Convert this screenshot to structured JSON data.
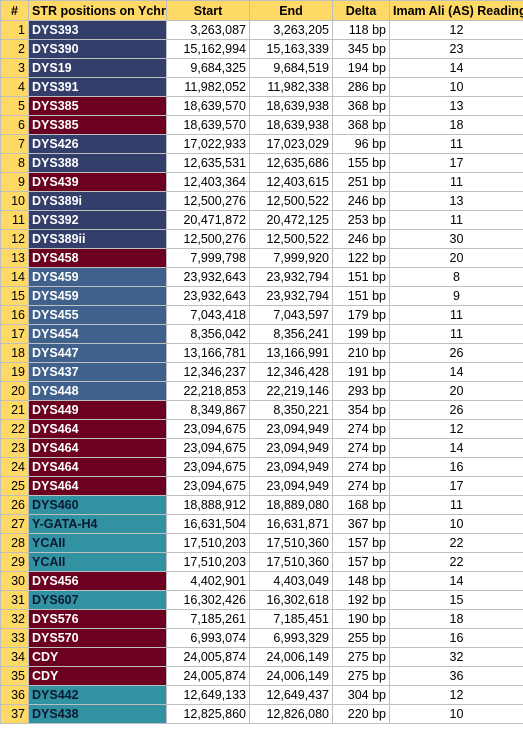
{
  "colors": {
    "header_bg": "#ffd966",
    "navy": "#333f6a",
    "maroon": "#6b0020",
    "steel": "#40618c",
    "teal": "#3192a2"
  },
  "headers": {
    "num": "#",
    "str": "STR positions on Ychr",
    "start": "Start",
    "end": "End",
    "delta": "Delta",
    "reading": "Imam Ali (AS) Reading"
  },
  "rows": [
    {
      "n": "1",
      "marker": "DYS393",
      "color": "navy",
      "start": "3,263,087",
      "end": "3,263,205",
      "delta": "118 bp",
      "reading": "12"
    },
    {
      "n": "2",
      "marker": "DYS390",
      "color": "navy",
      "start": "15,162,994",
      "end": "15,163,339",
      "delta": "345 bp",
      "reading": "23"
    },
    {
      "n": "3",
      "marker": "DYS19",
      "color": "navy",
      "start": "9,684,325",
      "end": "9,684,519",
      "delta": "194 bp",
      "reading": "14"
    },
    {
      "n": "4",
      "marker": "DYS391",
      "color": "navy",
      "start": "11,982,052",
      "end": "11,982,338",
      "delta": "286 bp",
      "reading": "10"
    },
    {
      "n": "5",
      "marker": "DYS385",
      "color": "maroon",
      "start": "18,639,570",
      "end": "18,639,938",
      "delta": "368 bp",
      "reading": "13"
    },
    {
      "n": "6",
      "marker": "DYS385",
      "color": "maroon",
      "start": "18,639,570",
      "end": "18,639,938",
      "delta": "368 bp",
      "reading": "18"
    },
    {
      "n": "7",
      "marker": "DYS426",
      "color": "navy",
      "start": "17,022,933",
      "end": "17,023,029",
      "delta": "96 bp",
      "reading": "11"
    },
    {
      "n": "8",
      "marker": "DYS388",
      "color": "navy",
      "start": "12,635,531",
      "end": "12,635,686",
      "delta": "155 bp",
      "reading": "17"
    },
    {
      "n": "9",
      "marker": "DYS439",
      "color": "maroon",
      "start": "12,403,364",
      "end": "12,403,615",
      "delta": "251 bp",
      "reading": "11"
    },
    {
      "n": "10",
      "marker": "DYS389i",
      "color": "navy",
      "start": "12,500,276",
      "end": "12,500,522",
      "delta": "246 bp",
      "reading": "13"
    },
    {
      "n": "11",
      "marker": "DYS392",
      "color": "navy",
      "start": "20,471,872",
      "end": "20,472,125",
      "delta": "253 bp",
      "reading": "11"
    },
    {
      "n": "12",
      "marker": "DYS389ii",
      "color": "navy",
      "start": "12,500,276",
      "end": "12,500,522",
      "delta": "246 bp",
      "reading": "30"
    },
    {
      "n": "13",
      "marker": "DYS458",
      "color": "maroon",
      "start": "7,999,798",
      "end": "7,999,920",
      "delta": "122 bp",
      "reading": "20"
    },
    {
      "n": "14",
      "marker": "DYS459",
      "color": "steel",
      "start": "23,932,643",
      "end": "23,932,794",
      "delta": "151 bp",
      "reading": "8"
    },
    {
      "n": "15",
      "marker": "DYS459",
      "color": "steel",
      "start": "23,932,643",
      "end": "23,932,794",
      "delta": "151 bp",
      "reading": "9"
    },
    {
      "n": "16",
      "marker": "DYS455",
      "color": "steel",
      "start": "7,043,418",
      "end": "7,043,597",
      "delta": "179 bp",
      "reading": "11"
    },
    {
      "n": "17",
      "marker": "DYS454",
      "color": "steel",
      "start": "8,356,042",
      "end": "8,356,241",
      "delta": "199 bp",
      "reading": "11"
    },
    {
      "n": "18",
      "marker": "DYS447",
      "color": "steel",
      "start": "13,166,781",
      "end": "13,166,991",
      "delta": "210 bp",
      "reading": "26"
    },
    {
      "n": "19",
      "marker": "DYS437",
      "color": "steel",
      "start": "12,346,237",
      "end": "12,346,428",
      "delta": "191 bp",
      "reading": "14"
    },
    {
      "n": "20",
      "marker": "DYS448",
      "color": "steel",
      "start": "22,218,853",
      "end": "22,219,146",
      "delta": "293 bp",
      "reading": "20"
    },
    {
      "n": "21",
      "marker": "DYS449",
      "color": "maroon",
      "start": "8,349,867",
      "end": "8,350,221",
      "delta": "354 bp",
      "reading": "26"
    },
    {
      "n": "22",
      "marker": "DYS464",
      "color": "maroon",
      "start": "23,094,675",
      "end": "23,094,949",
      "delta": "274 bp",
      "reading": "12"
    },
    {
      "n": "23",
      "marker": "DYS464",
      "color": "maroon",
      "start": "23,094,675",
      "end": "23,094,949",
      "delta": "274 bp",
      "reading": "14"
    },
    {
      "n": "24",
      "marker": "DYS464",
      "color": "maroon",
      "start": "23,094,675",
      "end": "23,094,949",
      "delta": "274 bp",
      "reading": "16"
    },
    {
      "n": "25",
      "marker": "DYS464",
      "color": "maroon",
      "start": "23,094,675",
      "end": "23,094,949",
      "delta": "274 bp",
      "reading": "17"
    },
    {
      "n": "26",
      "marker": "DYS460",
      "color": "teal",
      "start": "18,888,912",
      "end": "18,889,080",
      "delta": "168 bp",
      "reading": "11"
    },
    {
      "n": "27",
      "marker": "Y-GATA-H4",
      "color": "teal",
      "start": "16,631,504",
      "end": "16,631,871",
      "delta": "367 bp",
      "reading": "10"
    },
    {
      "n": "28",
      "marker": "YCAII",
      "color": "teal",
      "start": "17,510,203",
      "end": "17,510,360",
      "delta": "157 bp",
      "reading": "22"
    },
    {
      "n": "29",
      "marker": "YCAII",
      "color": "teal",
      "start": "17,510,203",
      "end": "17,510,360",
      "delta": "157 bp",
      "reading": "22"
    },
    {
      "n": "30",
      "marker": "DYS456",
      "color": "maroon",
      "start": "4,402,901",
      "end": "4,403,049",
      "delta": "148 bp",
      "reading": "14"
    },
    {
      "n": "31",
      "marker": "DYS607",
      "color": "teal",
      "start": "16,302,426",
      "end": "16,302,618",
      "delta": "192 bp",
      "reading": "15"
    },
    {
      "n": "32",
      "marker": "DYS576",
      "color": "maroon",
      "start": "7,185,261",
      "end": "7,185,451",
      "delta": "190 bp",
      "reading": "18"
    },
    {
      "n": "33",
      "marker": "DYS570",
      "color": "maroon",
      "start": "6,993,074",
      "end": "6,993,329",
      "delta": "255 bp",
      "reading": "16"
    },
    {
      "n": "34",
      "marker": "CDY",
      "color": "maroon",
      "start": "24,005,874",
      "end": "24,006,149",
      "delta": "275 bp",
      "reading": "32"
    },
    {
      "n": "35",
      "marker": "CDY",
      "color": "maroon",
      "start": "24,005,874",
      "end": "24,006,149",
      "delta": "275 bp",
      "reading": "36"
    },
    {
      "n": "36",
      "marker": "DYS442",
      "color": "teal",
      "start": "12,649,133",
      "end": "12,649,437",
      "delta": "304 bp",
      "reading": "12"
    },
    {
      "n": "37",
      "marker": "DYS438",
      "color": "teal",
      "start": "12,825,860",
      "end": "12,826,080",
      "delta": "220 bp",
      "reading": "10"
    }
  ]
}
